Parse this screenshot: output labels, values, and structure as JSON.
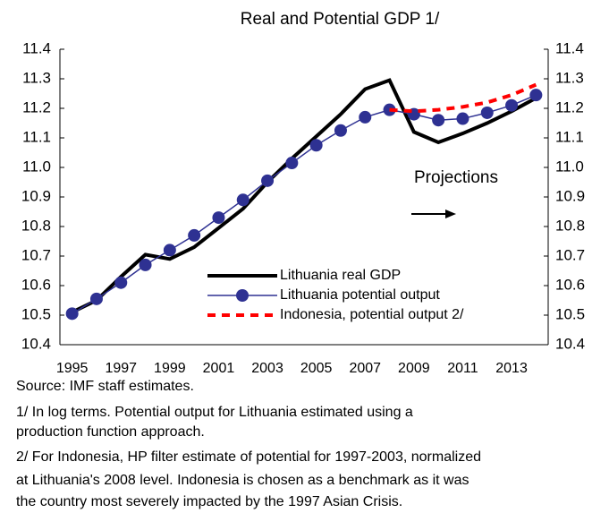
{
  "chart_data": {
    "type": "line",
    "title": "Real and Potential GDP 1/",
    "categories": [
      "1995",
      null,
      "1997",
      null,
      "1999",
      null,
      "2001",
      null,
      "2003",
      null,
      "2005",
      null,
      "2007",
      null,
      "2009",
      null,
      "2011",
      null,
      "2013",
      null
    ],
    "series": [
      {
        "name": "Lithuania real GDP",
        "color": "#000000",
        "values": [
          10.51,
          10.55,
          10.63,
          10.705,
          10.69,
          10.73,
          10.795,
          10.86,
          10.95,
          11.03,
          11.105,
          11.18,
          11.265,
          11.295,
          11.12,
          11.085,
          11.115,
          11.15,
          11.19,
          11.235
        ]
      },
      {
        "name": "Lithuania potential output",
        "color": "#2e3192",
        "values": [
          10.505,
          10.555,
          10.61,
          10.67,
          10.72,
          10.77,
          10.83,
          10.89,
          10.955,
          11.015,
          11.075,
          11.125,
          11.17,
          11.195,
          11.18,
          11.16,
          11.165,
          11.185,
          11.21,
          11.245
        ]
      },
      {
        "name": "Indonesia, potential output 2/",
        "color": "#ff0000",
        "values": [
          null,
          null,
          null,
          null,
          null,
          null,
          null,
          null,
          null,
          null,
          null,
          null,
          null,
          11.195,
          11.19,
          11.195,
          11.205,
          11.22,
          11.245,
          11.28
        ]
      }
    ],
    "ylim": [
      10.4,
      11.4
    ],
    "yticks": [
      10.4,
      10.5,
      10.6,
      10.7,
      10.8,
      10.9,
      {
        "value": 11,
        "label": "11.0"
      },
      11.1,
      11.2,
      11.3,
      11.4
    ],
    "y2lim": [
      10.4,
      11.4
    ],
    "y2ticks": [
      10.4,
      10.5,
      10.6,
      10.7,
      10.8,
      10.9,
      {
        "value": 11,
        "label": "11.0"
      },
      11.1,
      11.2,
      11.3,
      11.4
    ],
    "annotation": "Projections",
    "notes": [
      "Source: IMF staff estimates.",
      "1/ In log terms. Potential output for Lithuania estimated using a",
      "production function approach.",
      "2/ For Indonesia, HP filter estimate of potential for 1997-2003, normalized",
      "at Lithuania's 2008 level. Indonesia is chosen as a benchmark as it was",
      "the country most severely impacted by the 1997 Asian Crisis."
    ]
  }
}
